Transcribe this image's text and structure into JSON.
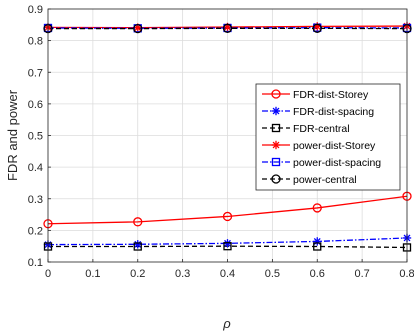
{
  "chart_data": {
    "type": "line",
    "title": "",
    "xlabel": "ρ",
    "ylabel": "FDR and power",
    "xlim": [
      0,
      0.8
    ],
    "ylim": [
      0.1,
      0.9
    ],
    "xticks": [
      0,
      0.1,
      0.2,
      0.3,
      0.4,
      0.5,
      0.6,
      0.7,
      0.8
    ],
    "xtick_labels": [
      "0",
      "0.1",
      "0.2",
      "0.3",
      "0.4",
      "0.5",
      "0.6",
      "0.7",
      "0.8"
    ],
    "yticks": [
      0.1,
      0.2,
      0.3,
      0.4,
      0.5,
      0.6,
      0.7,
      0.8,
      0.9
    ],
    "ytick_labels": [
      "0.1",
      "0.2",
      "0.3",
      "0.4",
      "0.5",
      "0.6",
      "0.7",
      "0.8",
      "0.9"
    ],
    "grid": true,
    "legend_position": "right-middle",
    "x": [
      0,
      0.2,
      0.4,
      0.6,
      0.8
    ],
    "series": [
      {
        "name": "FDR-dist-Storey",
        "values": [
          0.221,
          0.227,
          0.244,
          0.271,
          0.308
        ],
        "color": "#ff0000",
        "dash": "solid",
        "marker": "circle"
      },
      {
        "name": "FDR-dist-spacing",
        "values": [
          0.155,
          0.156,
          0.159,
          0.165,
          0.176
        ],
        "color": "#0000ff",
        "dash": "dashdot",
        "marker": "asterisk"
      },
      {
        "name": "FDR-central",
        "values": [
          0.149,
          0.149,
          0.15,
          0.149,
          0.146
        ],
        "color": "#000000",
        "dash": "dashed",
        "marker": "square"
      },
      {
        "name": "power-dist-Storey",
        "values": [
          0.842,
          0.841,
          0.843,
          0.845,
          0.846
        ],
        "color": "#ff0000",
        "dash": "solid",
        "marker": "asterisk"
      },
      {
        "name": "power-dist-spacing",
        "values": [
          0.84,
          0.839,
          0.84,
          0.841,
          0.84
        ],
        "color": "#0000ff",
        "dash": "dashdot",
        "marker": "square"
      },
      {
        "name": "power-central",
        "values": [
          0.838,
          0.838,
          0.839,
          0.839,
          0.838
        ],
        "color": "#000000",
        "dash": "dashed",
        "marker": "circle"
      }
    ]
  }
}
